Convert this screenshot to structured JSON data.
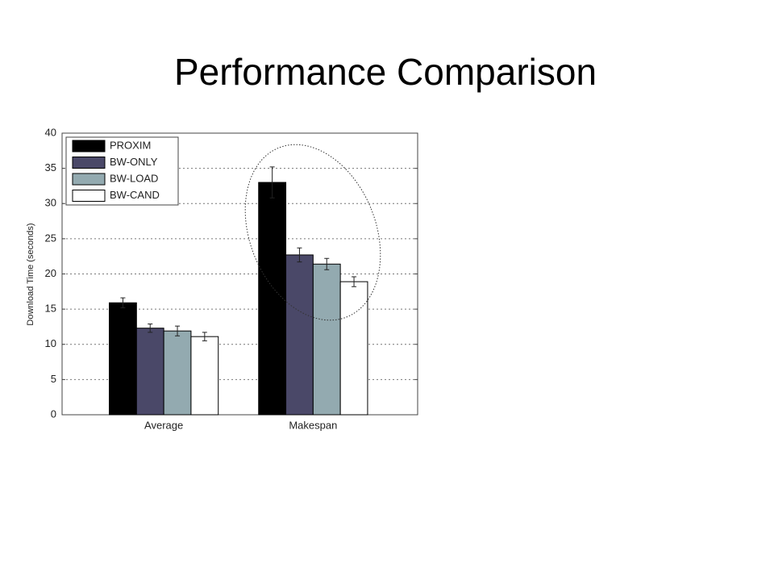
{
  "chart_data": {
    "type": "bar",
    "title": "Performance Comparison",
    "ylabel": "Download Time (seconds)",
    "categories": [
      "Average",
      "Makespan"
    ],
    "series": [
      {
        "name": "PROXIM",
        "color": "#000000",
        "values": [
          15.9,
          33.0
        ],
        "errors": [
          0.7,
          2.2
        ]
      },
      {
        "name": "BW-ONLY",
        "color": "#4a4868",
        "values": [
          12.3,
          22.7
        ],
        "errors": [
          0.6,
          1.0
        ]
      },
      {
        "name": "BW-LOAD",
        "color": "#93aab0",
        "values": [
          11.9,
          21.4
        ],
        "errors": [
          0.7,
          0.8
        ]
      },
      {
        "name": "BW-CAND",
        "color": "#ffffff",
        "values": [
          11.1,
          18.9
        ],
        "errors": [
          0.6,
          0.7
        ]
      }
    ],
    "ylim": [
      0,
      40
    ],
    "yticks": [
      0,
      5,
      10,
      15,
      20,
      25,
      30,
      35,
      40
    ],
    "grid": true,
    "legend": "upper left"
  }
}
